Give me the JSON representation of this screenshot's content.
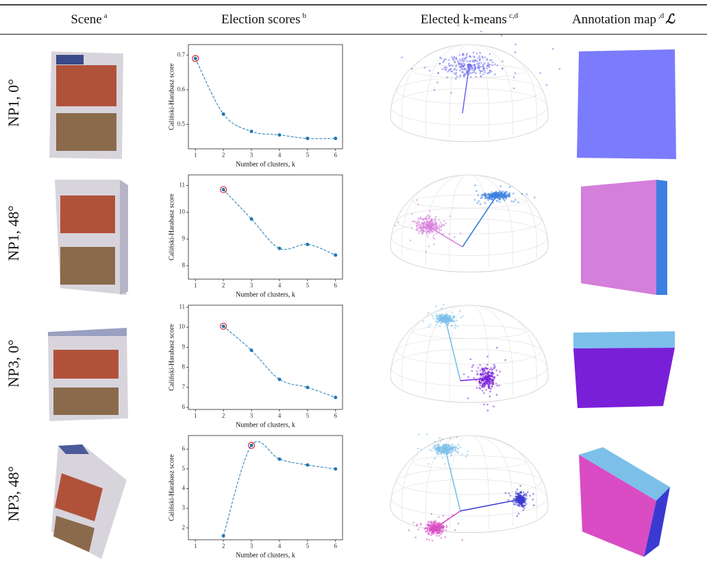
{
  "table": {
    "header": [
      {
        "text": "Scene",
        "note": "a"
      },
      {
        "text": "Election scores",
        "note": "b"
      },
      {
        "text": "Elected k-means",
        "note": "c,d"
      },
      {
        "text": "Annotation map",
        "note": ",d",
        "suffix": "ℒ"
      }
    ],
    "rows": [
      "NP1, 0°",
      "NP1, 48°",
      "NP3, 0°",
      "NP3, 48°"
    ]
  },
  "chart_data": [
    {
      "type": "line",
      "x": [
        1,
        2,
        3,
        4,
        5,
        6
      ],
      "values": [
        0.69,
        0.53,
        0.48,
        0.47,
        0.46,
        0.46
      ],
      "elected_k": 1,
      "xlim": [
        0.75,
        6.25
      ],
      "ylim": [
        0.43,
        0.73
      ],
      "xticks": [
        1,
        2,
        3,
        4,
        5,
        6
      ],
      "yticks": [
        0.5,
        0.6,
        0.7
      ],
      "x_label": "Number of clusters, k",
      "y_label": "Caliński-Harabasz score",
      "color": "#1f77b4",
      "highlight_color": "#d62728"
    },
    {
      "type": "line",
      "x": [
        1,
        2,
        3,
        4,
        5,
        6
      ],
      "values": [
        null,
        10.85,
        9.75,
        8.65,
        8.8,
        8.4
      ],
      "elected_k": 2,
      "xlim": [
        0.75,
        6.25
      ],
      "ylim": [
        7.5,
        11.4
      ],
      "xticks": [
        1,
        2,
        3,
        4,
        5,
        6
      ],
      "yticks": [
        8,
        9,
        10,
        11
      ],
      "x_label": "Number of clusters, k",
      "y_label": "Caliński-Harabasz score",
      "color": "#1f77b4",
      "highlight_color": "#d62728"
    },
    {
      "type": "line",
      "x": [
        1,
        2,
        3,
        4,
        5,
        6
      ],
      "values": [
        null,
        10.05,
        8.85,
        7.4,
        7.0,
        6.5
      ],
      "elected_k": 2,
      "xlim": [
        0.75,
        6.25
      ],
      "ylim": [
        5.9,
        11.1
      ],
      "xticks": [
        1,
        2,
        3,
        4,
        5,
        6
      ],
      "yticks": [
        6,
        7,
        8,
        9,
        10,
        11
      ],
      "x_label": "Number of clusters, k",
      "y_label": "Caliński-Harabasz score",
      "color": "#1f77b4",
      "highlight_color": "#d62728"
    },
    {
      "type": "line",
      "x": [
        1,
        2,
        3,
        4,
        5,
        6
      ],
      "values": [
        null,
        1.6,
        6.2,
        5.5,
        5.2,
        5.0
      ],
      "elected_k": 3,
      "xlim": [
        0.75,
        6.25
      ],
      "ylim": [
        1.4,
        6.7
      ],
      "xticks": [
        1,
        2,
        3,
        4,
        5,
        6
      ],
      "yticks": [
        2,
        3,
        4,
        5,
        6
      ],
      "x_label": "Number of clusters, k",
      "y_label": "Caliński-Harabasz score",
      "color": "#1f77b4",
      "highlight_color": "#d62728"
    }
  ]
}
